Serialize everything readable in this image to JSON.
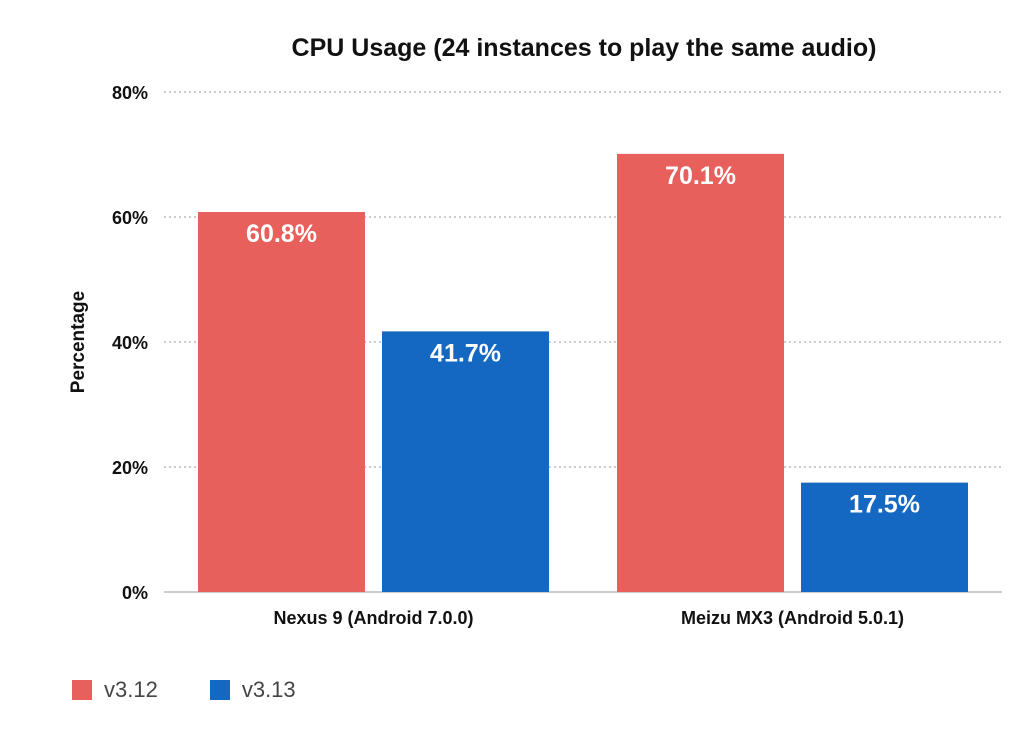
{
  "chart_data": {
    "type": "bar",
    "title": "CPU Usage (24 instances to play the same audio)",
    "xlabel": "",
    "ylabel": "Percentage",
    "categories": [
      "Nexus 9 (Android 7.0.0)",
      "Meizu MX3 (Android 5.0.1)"
    ],
    "series": [
      {
        "name": "v3.12",
        "color": "#e8605c",
        "values": [
          60.8,
          70.1
        ],
        "labels": [
          "60.8%",
          "70.1%"
        ]
      },
      {
        "name": "v3.13",
        "color": "#1568c2",
        "values": [
          41.7,
          17.5
        ],
        "labels": [
          "41.7%",
          "17.5%"
        ]
      }
    ],
    "ylim": [
      0,
      80
    ],
    "yticks": [
      0,
      20,
      40,
      60,
      80
    ],
    "ytick_labels": [
      "0%",
      "20%",
      "40%",
      "60%",
      "80%"
    ],
    "grid": true,
    "grid_style": "dotted",
    "legend_position": "bottom-left"
  }
}
